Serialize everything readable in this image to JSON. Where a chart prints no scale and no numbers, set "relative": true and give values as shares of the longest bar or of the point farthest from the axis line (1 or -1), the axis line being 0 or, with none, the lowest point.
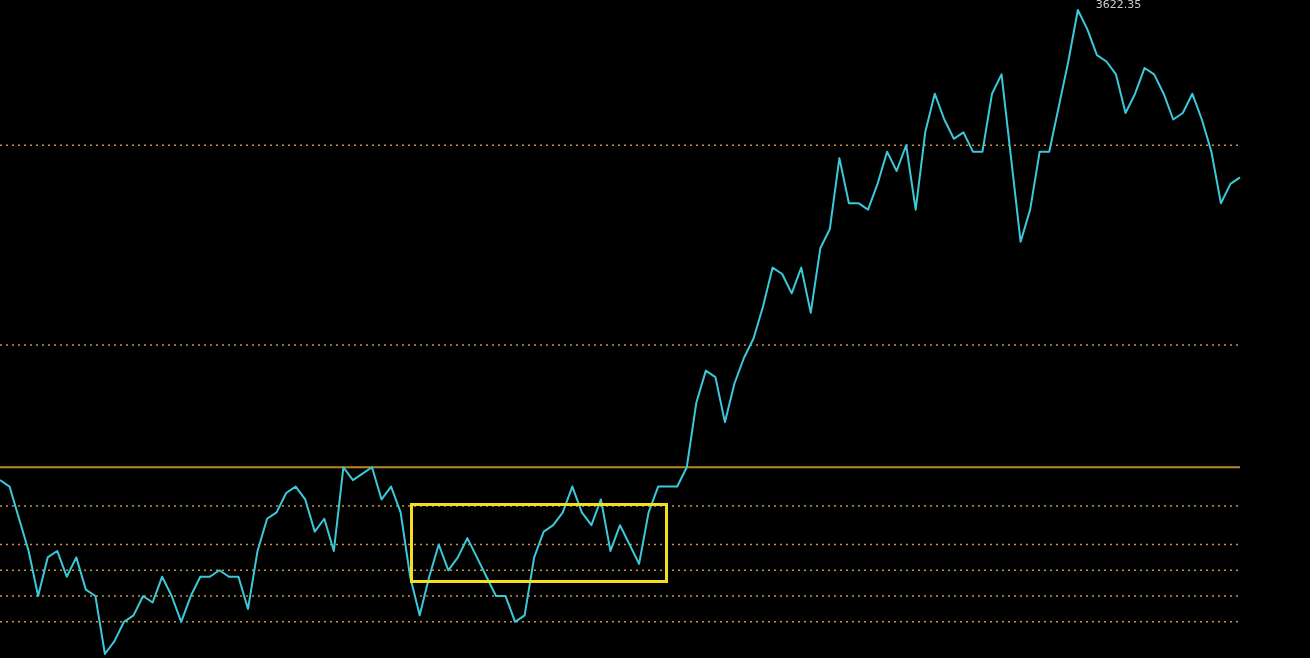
{
  "chart_data": {
    "type": "line",
    "relative": true,
    "color": "#3cc8d8",
    "marker": "none",
    "line_style": "solid",
    "legend": false,
    "categories": [
      null,
      null,
      null,
      null,
      null,
      null,
      null,
      null,
      null,
      null,
      null,
      null,
      null,
      null,
      null,
      null,
      null,
      null,
      null,
      null,
      null,
      null,
      null,
      null,
      null,
      null,
      null,
      null,
      null,
      null,
      null,
      null,
      null,
      null,
      null,
      null,
      null,
      null,
      null,
      null,
      null,
      null,
      null,
      null,
      null,
      null,
      null,
      null,
      null,
      null,
      null,
      null,
      null,
      null,
      null,
      null,
      null,
      null,
      null,
      null,
      null,
      null,
      null,
      null,
      null,
      null,
      null,
      null,
      null,
      null,
      null,
      null,
      null,
      null,
      null,
      null,
      null,
      null,
      null,
      null,
      null,
      null,
      null,
      null,
      null,
      null,
      null,
      null,
      null,
      null,
      null,
      null,
      null,
      null,
      null,
      null,
      null,
      null,
      null,
      null,
      null,
      null,
      null,
      null,
      null,
      null,
      null,
      null,
      null,
      null,
      null,
      null,
      null,
      null,
      null,
      null,
      null,
      null,
      null,
      null,
      null,
      null,
      null,
      null,
      null,
      null,
      null,
      null,
      null,
      null,
      null
    ],
    "values": [
      0.27,
      0.26,
      0.21,
      0.16,
      0.09,
      0.15,
      0.16,
      0.12,
      0.15,
      0.1,
      0.09,
      0,
      0.02,
      0.05,
      0.06,
      0.09,
      0.08,
      0.12,
      0.09,
      0.05,
      0.09,
      0.12,
      0.12,
      0.13,
      0.12,
      0.12,
      0.07,
      0.16,
      0.21,
      0.22,
      0.25,
      0.26,
      0.24,
      0.19,
      0.21,
      0.16,
      0.29,
      0.27,
      0.28,
      0.29,
      0.24,
      0.26,
      0.22,
      0.12,
      0.06,
      0.12,
      0.17,
      0.13,
      0.15,
      0.18,
      0.15,
      0.12,
      0.09,
      0.09,
      0.05,
      0.06,
      0.15,
      0.19,
      0.2,
      0.22,
      0.26,
      0.22,
      0.2,
      0.24,
      0.16,
      0.2,
      0.17,
      0.14,
      0.22,
      0.26,
      0.26,
      0.26,
      0.29,
      0.39,
      0.44,
      0.43,
      0.36,
      0.42,
      0.46,
      0.49,
      0.54,
      0.6,
      0.59,
      0.56,
      0.6,
      0.53,
      0.63,
      0.66,
      0.77,
      0.7,
      0.7,
      0.69,
      0.73,
      0.78,
      0.75,
      0.79,
      0.69,
      0.81,
      0.87,
      0.83,
      0.8,
      0.81,
      0.78,
      0.78,
      0.87,
      0.9,
      0.77,
      0.64,
      0.69,
      0.78,
      0.78,
      0.85,
      0.92,
      1,
      0.97,
      0.93,
      0.92,
      0.9,
      0.84,
      0.87,
      0.91,
      0.9,
      0.87,
      0.83,
      0.84,
      0.87,
      0.83,
      0.78,
      0.7,
      0.73,
      0.74
    ],
    "ref_lines": [
      {
        "axis": "y",
        "value": 0.79,
        "color": "#c8913a",
        "line_style": "dotted"
      },
      {
        "axis": "y",
        "value": 0.48,
        "color": "#c8913a",
        "line_style": "dotted"
      },
      {
        "axis": "y",
        "value": 0.29,
        "color": "#b8862b",
        "line_style": "solid"
      },
      {
        "axis": "y",
        "value": 0.23,
        "color": "#c8913a",
        "line_style": "dotted"
      },
      {
        "axis": "y",
        "value": 0.17,
        "color": "#c8913a",
        "line_style": "dotted"
      },
      {
        "axis": "y",
        "value": 0.13,
        "color": "#c8913a",
        "line_style": "dotted"
      },
      {
        "axis": "y",
        "value": 0.09,
        "color": "#c8913a",
        "line_style": "dotted"
      },
      {
        "axis": "y",
        "value": 0.05,
        "color": "#c8913a",
        "line_style": "dotted"
      }
    ],
    "annotations": [
      "3622.35"
    ]
  }
}
